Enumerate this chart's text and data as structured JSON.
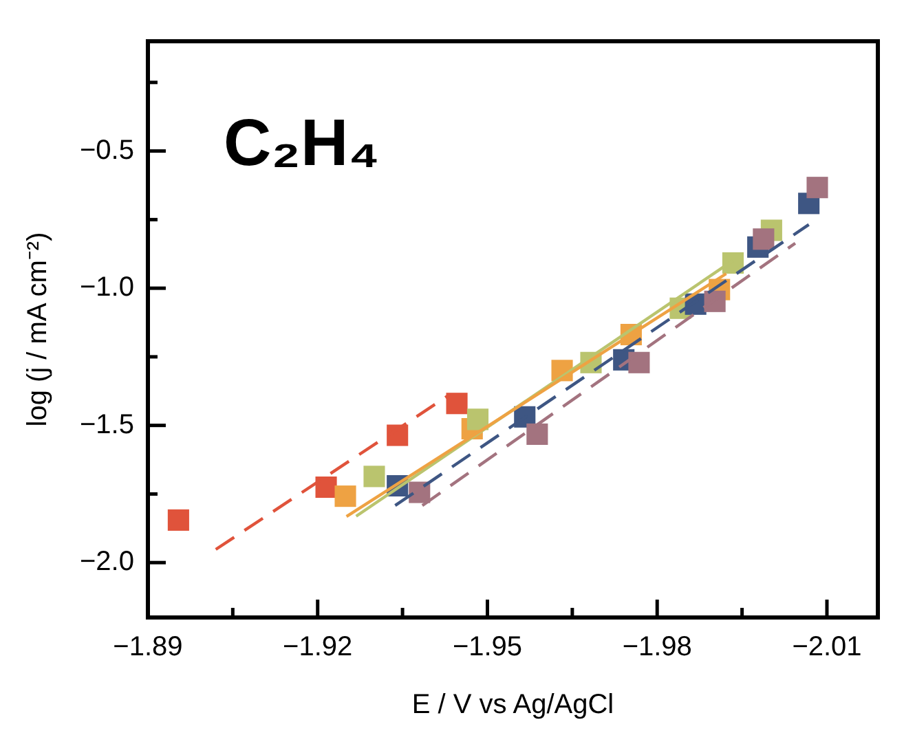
{
  "chart_data": {
    "type": "scatter",
    "title": "C₂H₄",
    "xlabel": "E / V vs Ag/AgCl",
    "ylabel": "log (j / mA cm⁻²)",
    "xlim": [
      -1.89,
      -2.019
    ],
    "xticks": [
      -1.89,
      {
        "value": -1.905,
        "label": null
      },
      -1.92,
      {
        "value": -1.935,
        "label": null
      },
      -1.95,
      {
        "value": -1.965,
        "label": null
      },
      -1.98,
      {
        "value": -1.995,
        "label": null
      },
      -2.01
    ],
    "ylim": [
      -2.2,
      -0.1
    ],
    "yticks": [
      {
        "value": -0.25,
        "label": null
      },
      -0.5,
      {
        "value": -0.75,
        "label": null
      },
      {
        "value": -1.0,
        "label": "−1.0"
      },
      {
        "value": -1.25,
        "label": null
      },
      -1.5,
      {
        "value": -1.75,
        "label": null
      },
      {
        "value": -2.0,
        "label": "−2.0"
      }
    ],
    "grid": false,
    "legend": false,
    "marker": "square",
    "series": [
      {
        "color": "#e0533b",
        "x": [
          -1.8954,
          -1.9215,
          -1.9341,
          -1.9446
        ],
        "values": [
          -1.845,
          -1.725,
          -1.536,
          -1.42
        ]
      },
      {
        "color": "#eea243",
        "x": [
          -1.9249,
          -1.9473,
          -1.9632,
          -1.9754,
          -1.991
        ],
        "values": [
          -1.758,
          -1.512,
          -1.3,
          -1.169,
          -1.005
        ]
      },
      {
        "color": "#bac46e",
        "x": [
          -1.93,
          -1.9483,
          -1.9683,
          -1.9841,
          -1.9934,
          -2.0002
        ],
        "values": [
          -1.686,
          -1.478,
          -1.271,
          -1.073,
          -0.908,
          -0.789
        ]
      },
      {
        "color": "#3e5683",
        "x": [
          -1.9341,
          -1.9566,
          -1.9741,
          -1.9868,
          -1.9978,
          -2.0068
        ],
        "values": [
          -1.72,
          -1.469,
          -1.261,
          -1.058,
          -0.85,
          -0.691
        ]
      },
      {
        "color": "#a3737f",
        "x": [
          -1.938,
          -1.9588,
          -1.9768,
          -1.9902,
          -1.9988,
          -2.0083
        ],
        "values": [
          -1.744,
          -1.532,
          -1.271,
          -1.048,
          -0.821,
          -0.633
        ]
      },
      {
        "type": "line",
        "color": "#e0533b",
        "line_style": "dashed",
        "marker": "none",
        "x": [
          -1.902,
          -1.9434
        ],
        "values": [
          -1.952,
          -1.387
        ]
      },
      {
        "type": "line",
        "color": "#eea243",
        "line_style": "solid",
        "marker": "none",
        "x": [
          -1.9251,
          -1.9922
        ],
        "values": [
          -1.832,
          -0.947
        ]
      },
      {
        "type": "line",
        "color": "#bac46e",
        "line_style": "solid",
        "marker": "none",
        "x": [
          -1.9268,
          -1.9934
        ],
        "values": [
          -1.831,
          -0.899
        ]
      },
      {
        "type": "line",
        "color": "#3e5683",
        "line_style": "dashed",
        "marker": "none",
        "x": [
          -1.9337,
          -2.0068
        ],
        "values": [
          -1.792,
          -0.768
        ]
      },
      {
        "type": "line",
        "color": "#a3737f",
        "line_style": "dashed",
        "marker": "none",
        "x": [
          -1.9385,
          -2.0044
        ],
        "values": [
          -1.792,
          -0.836
        ]
      }
    ]
  }
}
